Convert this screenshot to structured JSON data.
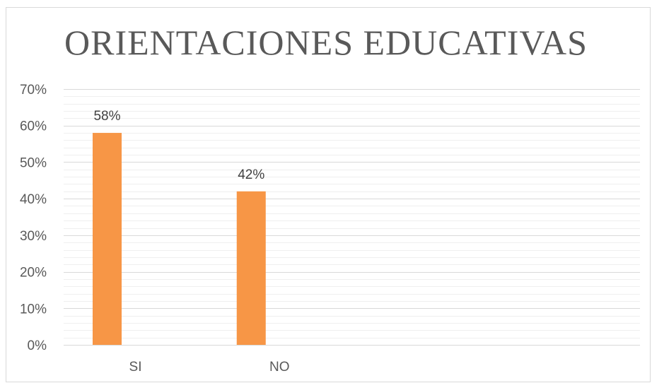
{
  "chart_data": {
    "type": "bar",
    "title": "ORIENTACIONES EDUCATIVAS",
    "categories": [
      "SI",
      "NO"
    ],
    "values": [
      0.58,
      0.42
    ],
    "data_labels": [
      "58%",
      "42%"
    ],
    "y_ticks": [
      "0%",
      "10%",
      "20%",
      "30%",
      "40%",
      "50%",
      "60%",
      "70%"
    ],
    "y_tick_values": [
      0,
      0.1,
      0.2,
      0.3,
      0.4,
      0.5,
      0.6,
      0.7
    ],
    "ylim": [
      0,
      0.7
    ],
    "xlabel": "",
    "ylabel": "",
    "grid": true,
    "legend": "none",
    "bar_color": "#F79646",
    "grid_color": "#d9d9d9"
  }
}
